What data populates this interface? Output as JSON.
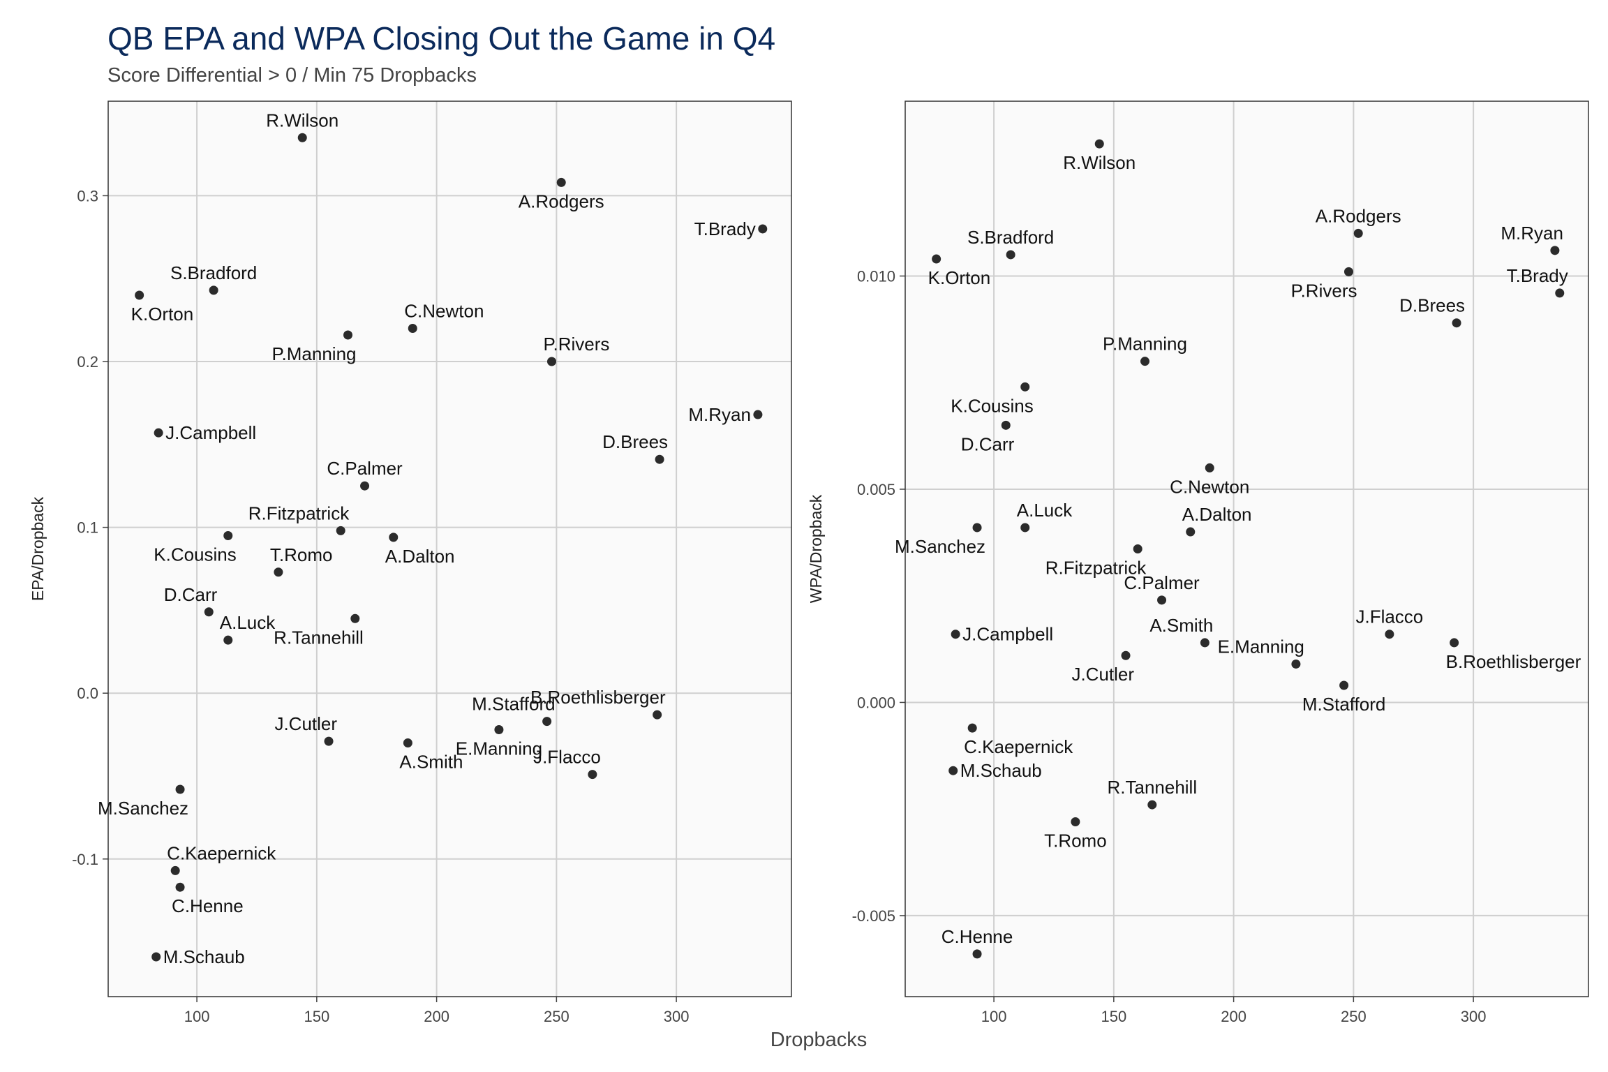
{
  "title": "QB EPA and WPA Closing Out the Game in Q4",
  "subtitle": "Score Differential > 0 / Min 75 Dropbacks",
  "colors": {
    "title": "#0b2a5b",
    "panel_background": "#fafafa",
    "grid": "#cfcfcf",
    "point": "#2b2b2b"
  },
  "chart_data": [
    {
      "type": "scatter",
      "xlabel": "Dropbacks",
      "ylabel": "EPA/Dropback",
      "xlim": [
        63,
        348
      ],
      "ylim": [
        -0.183,
        0.357
      ],
      "xticks": [
        100,
        150,
        200,
        250,
        300
      ],
      "yticks": [
        -0.1,
        0.0,
        0.1,
        0.2,
        0.3
      ],
      "ytick_labels": [
        "-0.1",
        "0.0",
        "0.1",
        "0.2",
        "0.3"
      ],
      "grid": true,
      "points": [
        {
          "label": "R.Wilson",
          "x": 144,
          "y": 0.335,
          "pos": "above"
        },
        {
          "label": "A.Rodgers",
          "x": 252,
          "y": 0.308,
          "pos": "below"
        },
        {
          "label": "T.Brady",
          "x": 336,
          "y": 0.28,
          "pos": "left"
        },
        {
          "label": "S.Bradford",
          "x": 107,
          "y": 0.243,
          "pos": "above"
        },
        {
          "label": "K.Orton",
          "x": 76,
          "y": 0.24,
          "pos": "below-right"
        },
        {
          "label": "C.Newton",
          "x": 190,
          "y": 0.22,
          "pos": "above-right"
        },
        {
          "label": "P.Manning",
          "x": 163,
          "y": 0.216,
          "pos": "below-left"
        },
        {
          "label": "P.Rivers",
          "x": 248,
          "y": 0.2,
          "pos": "above-right"
        },
        {
          "label": "M.Ryan",
          "x": 334,
          "y": 0.168,
          "pos": "left"
        },
        {
          "label": "J.Campbell",
          "x": 84,
          "y": 0.157,
          "pos": "right"
        },
        {
          "label": "D.Brees",
          "x": 293,
          "y": 0.141,
          "pos": "above-left"
        },
        {
          "label": "C.Palmer",
          "x": 170,
          "y": 0.125,
          "pos": "above"
        },
        {
          "label": "R.Fitzpatrick",
          "x": 160,
          "y": 0.098,
          "pos": "above-left"
        },
        {
          "label": "K.Cousins",
          "x": 113,
          "y": 0.095,
          "pos": "below-left"
        },
        {
          "label": "A.Dalton",
          "x": 182,
          "y": 0.094,
          "pos": "below-right"
        },
        {
          "label": "T.Romo",
          "x": 134,
          "y": 0.073,
          "pos": "above-right"
        },
        {
          "label": "D.Carr",
          "x": 105,
          "y": 0.049,
          "pos": "above-left"
        },
        {
          "label": "R.Tannehill",
          "x": 166,
          "y": 0.045,
          "pos": "below-left"
        },
        {
          "label": "A.Luck",
          "x": 113,
          "y": 0.032,
          "pos": "above-right"
        },
        {
          "label": "B.Roethlisberger",
          "x": 292,
          "y": -0.013,
          "pos": "above-left"
        },
        {
          "label": "M.Stafford",
          "x": 246,
          "y": -0.017,
          "pos": "above-left"
        },
        {
          "label": "E.Manning",
          "x": 226,
          "y": -0.022,
          "pos": "below"
        },
        {
          "label": "J.Cutler",
          "x": 155,
          "y": -0.029,
          "pos": "above-left"
        },
        {
          "label": "A.Smith",
          "x": 188,
          "y": -0.03,
          "pos": "below-right"
        },
        {
          "label": "J.Flacco",
          "x": 265,
          "y": -0.049,
          "pos": "above-left"
        },
        {
          "label": "M.Sanchez",
          "x": 93,
          "y": -0.058,
          "pos": "below-left"
        },
        {
          "label": "C.Kaepernick",
          "x": 91,
          "y": -0.107,
          "pos": "above-right"
        },
        {
          "label": "C.Henne",
          "x": 93,
          "y": -0.117,
          "pos": "below-right"
        },
        {
          "label": "M.Schaub",
          "x": 83,
          "y": -0.159,
          "pos": "right"
        }
      ]
    },
    {
      "type": "scatter",
      "xlabel": "Dropbacks",
      "ylabel": "WPA/Dropback",
      "xlim": [
        63,
        348
      ],
      "ylim": [
        -0.0069,
        0.0141
      ],
      "xticks": [
        100,
        150,
        200,
        250,
        300
      ],
      "yticks": [
        -0.005,
        0.0,
        0.005,
        0.01
      ],
      "ytick_labels": [
        "-0.005",
        "0.000",
        "0.005",
        "0.010"
      ],
      "grid": true,
      "points": [
        {
          "label": "R.Wilson",
          "x": 144,
          "y": 0.0131,
          "pos": "below"
        },
        {
          "label": "A.Rodgers",
          "x": 252,
          "y": 0.011,
          "pos": "above"
        },
        {
          "label": "M.Ryan",
          "x": 334,
          "y": 0.0106,
          "pos": "above-left"
        },
        {
          "label": "S.Bradford",
          "x": 107,
          "y": 0.0105,
          "pos": "above"
        },
        {
          "label": "K.Orton",
          "x": 76,
          "y": 0.0104,
          "pos": "below-right"
        },
        {
          "label": "P.Rivers",
          "x": 248,
          "y": 0.0101,
          "pos": "below-left"
        },
        {
          "label": "T.Brady",
          "x": 336,
          "y": 0.0096,
          "pos": "above-left"
        },
        {
          "label": "D.Brees",
          "x": 293,
          "y": 0.0089,
          "pos": "above-left"
        },
        {
          "label": "P.Manning",
          "x": 163,
          "y": 0.008,
          "pos": "above"
        },
        {
          "label": "K.Cousins",
          "x": 113,
          "y": 0.0074,
          "pos": "below-left"
        },
        {
          "label": "D.Carr",
          "x": 105,
          "y": 0.0065,
          "pos": "below-left"
        },
        {
          "label": "C.Newton",
          "x": 190,
          "y": 0.0055,
          "pos": "below"
        },
        {
          "label": "M.Sanchez",
          "x": 93,
          "y": 0.0041,
          "pos": "below-left"
        },
        {
          "label": "A.Luck",
          "x": 113,
          "y": 0.0041,
          "pos": "above-right"
        },
        {
          "label": "A.Dalton",
          "x": 182,
          "y": 0.004,
          "pos": "above-right"
        },
        {
          "label": "R.Fitzpatrick",
          "x": 160,
          "y": 0.0036,
          "pos": "below-left"
        },
        {
          "label": "C.Palmer",
          "x": 170,
          "y": 0.0024,
          "pos": "above"
        },
        {
          "label": "J.Campbell",
          "x": 84,
          "y": 0.0016,
          "pos": "right"
        },
        {
          "label": "J.Flacco",
          "x": 265,
          "y": 0.0016,
          "pos": "above"
        },
        {
          "label": "A.Smith",
          "x": 188,
          "y": 0.0014,
          "pos": "above-left"
        },
        {
          "label": "B.Roethlisberger",
          "x": 292,
          "y": 0.0014,
          "pos": "below-right"
        },
        {
          "label": "J.Cutler",
          "x": 155,
          "y": 0.0011,
          "pos": "below-left"
        },
        {
          "label": "E.Manning",
          "x": 226,
          "y": 0.0009,
          "pos": "above-left"
        },
        {
          "label": "M.Stafford",
          "x": 246,
          "y": 0.0004,
          "pos": "below"
        },
        {
          "label": "C.Kaepernick",
          "x": 91,
          "y": -0.0006,
          "pos": "below-right"
        },
        {
          "label": "M.Schaub",
          "x": 83,
          "y": -0.0016,
          "pos": "right"
        },
        {
          "label": "R.Tannehill",
          "x": 166,
          "y": -0.0024,
          "pos": "above"
        },
        {
          "label": "T.Romo",
          "x": 134,
          "y": -0.0028,
          "pos": "below"
        },
        {
          "label": "C.Henne",
          "x": 93,
          "y": -0.0059,
          "pos": "above"
        }
      ]
    }
  ]
}
